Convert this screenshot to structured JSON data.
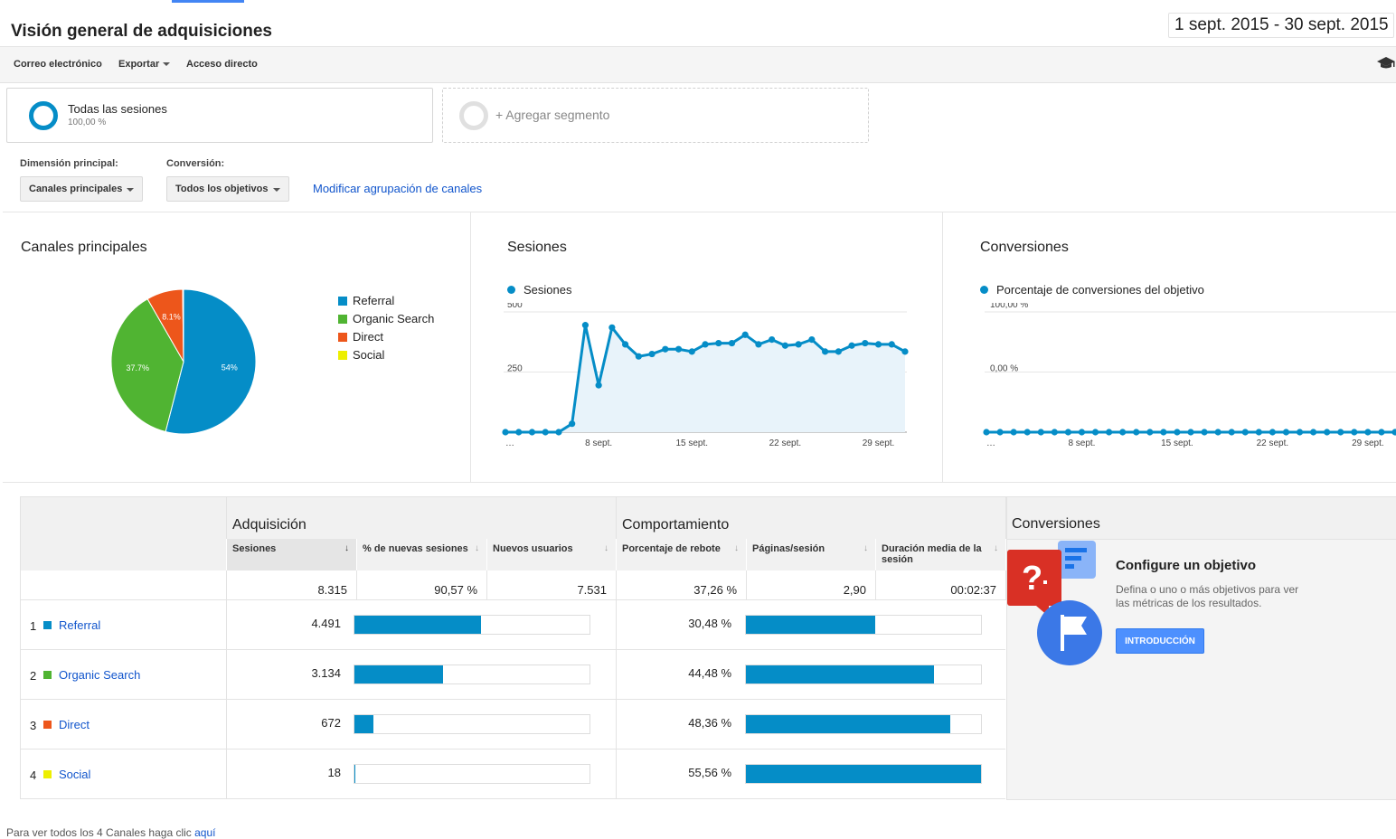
{
  "header": {
    "title": "Visión general de adquisiciones",
    "date_range": "1 sept. 2015 - 30 sept. 2015"
  },
  "actions": {
    "email": "Correo electrónico",
    "export": "Exportar",
    "shortcut": "Acceso directo",
    "help_icon": "graduation-cap-icon"
  },
  "segments": {
    "all": {
      "name": "Todas las sesiones",
      "pct": "100,00 %"
    },
    "add": {
      "label": "+ Agregar segmento"
    }
  },
  "dimensions": {
    "primary_label": "Dimensión principal:",
    "primary_value": "Canales principales",
    "conversion_label": "Conversión:",
    "conversion_value": "Todos los objetivos",
    "modify_link": "Modificar agrupación de canales"
  },
  "colors": {
    "referral": "#058dc7",
    "organic": "#50b432",
    "direct": "#ed561b",
    "social": "#edef00",
    "accent": "#058dc7"
  },
  "chart_data": [
    {
      "type": "pie",
      "title": "Canales principales",
      "labels": [
        "Referral",
        "Organic Search",
        "Direct",
        "Social"
      ],
      "values": [
        54.0,
        37.7,
        8.1,
        0.2
      ],
      "display_labels": [
        "54%",
        "37.7%",
        "8.1%",
        ""
      ],
      "legend_position": "right"
    },
    {
      "type": "area",
      "title": "Sesiones",
      "series": [
        {
          "name": "Sesiones",
          "values": [
            0,
            0,
            0,
            0,
            0,
            35,
            445,
            195,
            435,
            365,
            315,
            325,
            345,
            345,
            335,
            365,
            370,
            370,
            405,
            365,
            385,
            360,
            365,
            385,
            335,
            335,
            360,
            370,
            365,
            365,
            335
          ]
        }
      ],
      "x_ticks": [
        "…",
        "8 sept.",
        "15 sept.",
        "22 sept.",
        "29 sept."
      ],
      "y_ticks": [
        "500",
        "250"
      ],
      "ylim": [
        0,
        500
      ],
      "grid": true,
      "legend_position": "top-left"
    },
    {
      "type": "line",
      "title": "Conversiones",
      "series": [
        {
          "name": "Porcentaje de conversiones del objetivo",
          "values": [
            0,
            0,
            0,
            0,
            0,
            0,
            0,
            0,
            0,
            0,
            0,
            0,
            0,
            0,
            0,
            0,
            0,
            0,
            0,
            0,
            0,
            0,
            0,
            0,
            0,
            0,
            0,
            0,
            0,
            0,
            0
          ]
        }
      ],
      "x_ticks": [
        "…",
        "8 sept.",
        "15 sept.",
        "22 sept.",
        "29 sept."
      ],
      "y_ticks": [
        "100,00 %",
        "0,00 %"
      ],
      "ylim": [
        0,
        100
      ],
      "grid": true,
      "legend_position": "top-left"
    }
  ],
  "table": {
    "groups": {
      "acquisition": "Adquisición",
      "behavior": "Comportamiento",
      "conversions": "Conversiones"
    },
    "columns": {
      "sessions": "Sesiones",
      "new_sessions": "% de nuevas sesiones",
      "new_users": "Nuevos usuarios",
      "bounce": "Porcentaje de rebote",
      "pages": "Páginas/sesión",
      "duration": "Duración media de la sesión"
    },
    "totals": {
      "sessions": "8.315",
      "new_sessions": "90,57 %",
      "new_users": "7.531",
      "bounce": "37,26 %",
      "pages": "2,90",
      "duration": "00:02:37"
    },
    "rows": [
      {
        "num": "1",
        "name": "Referral",
        "sessions": "4.491",
        "sessions_share": 54.0,
        "bounce": "30,48 %",
        "bounce_value": 30.48
      },
      {
        "num": "2",
        "name": "Organic Search",
        "sessions": "3.134",
        "sessions_share": 37.7,
        "bounce": "44,48 %",
        "bounce_value": 44.48
      },
      {
        "num": "3",
        "name": "Direct",
        "sessions": "672",
        "sessions_share": 8.1,
        "bounce": "48,36 %",
        "bounce_value": 48.36
      },
      {
        "num": "4",
        "name": "Social",
        "sessions": "18",
        "sessions_share": 0.2,
        "bounce": "55,56 %",
        "bounce_value": 55.56
      }
    ]
  },
  "goal": {
    "title": "Configure un objetivo",
    "desc": "Defina o uno o más objetivos para ver las métricas de los resultados.",
    "button": "INTRODUCCIÓN"
  },
  "footer": {
    "text": "Para ver todos los 4 Canales haga clic ",
    "link": "aquí"
  }
}
